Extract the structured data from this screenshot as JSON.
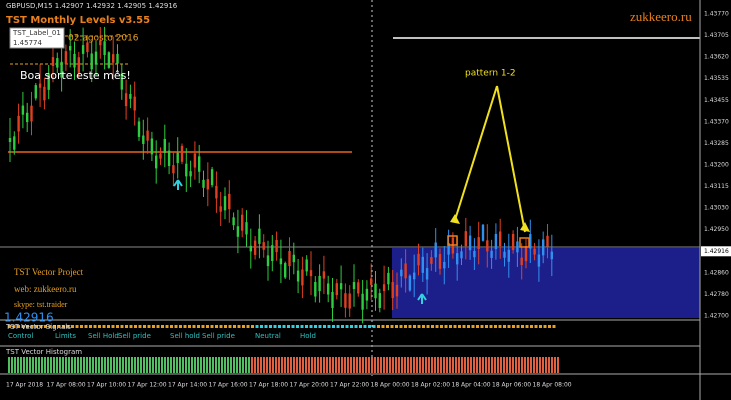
{
  "header": {
    "symbol": "GBPUSD,M15 1.42907 1.42932 1.42905 1.42916",
    "indicator": "TST Monthly Levels v3.55",
    "label_name": "TST_Label_01",
    "label_price": "1.45774",
    "label_date": "02.agosto 2016",
    "message": "Boa sorte este mês!",
    "brand": "zukkeero.ru"
  },
  "annotations": {
    "pattern": "pattern 1-2"
  },
  "footer_info": {
    "project": "TST Vector Project",
    "web": "web: zukkeero.ru",
    "skype": "skype: tst.traider",
    "price": "1.42916"
  },
  "price_axis": [
    "1.43770",
    "1.43705",
    "1.43620",
    "1.43535",
    "1.43455",
    "1.43370",
    "1.43285",
    "1.43200",
    "1.43115",
    "1.43030",
    "1.42950",
    "1.42916",
    "1.42860",
    "1.42780",
    "1.42700"
  ],
  "indicator_panel": {
    "title": "TST Vector Signals",
    "labels": [
      "Control",
      "Limits",
      "Sell Hold",
      "Sell pride",
      "Sell hold",
      "Sell pride",
      "Neutral",
      "Hold"
    ]
  },
  "histogram_panel": {
    "title": "TST Vector Histogram"
  },
  "time_axis": [
    "17 Apr 2018",
    "17 Apr 08:00",
    "17 Apr 10:00",
    "17 Apr 12:00",
    "17 Apr 14:00",
    "17 Apr 16:00",
    "17 Apr 18:00",
    "17 Apr 20:00",
    "17 Apr 22:00",
    "18 Apr 00:00",
    "18 Apr 02:00",
    "18 Apr 04:00",
    "18 Apr 06:00",
    "18 Apr 08:00"
  ]
}
